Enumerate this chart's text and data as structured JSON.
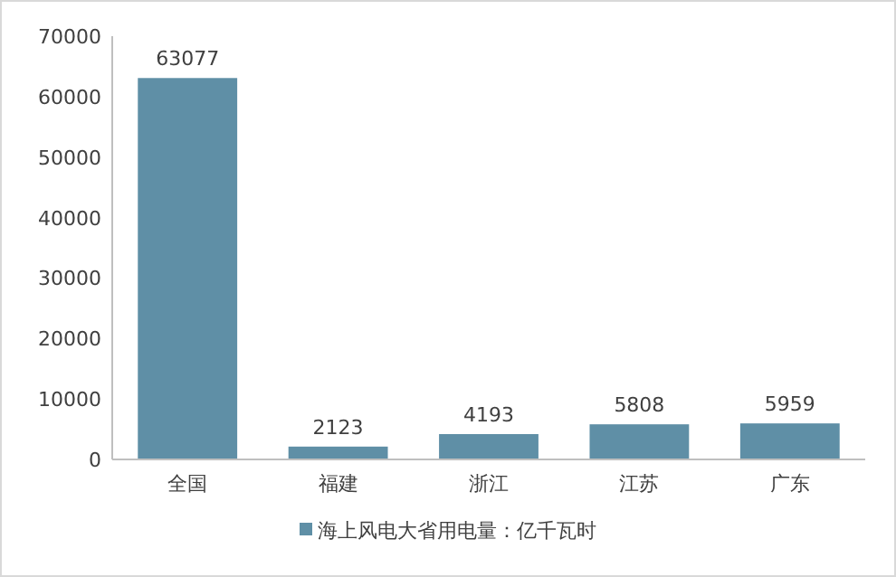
{
  "chart_data": {
    "type": "bar",
    "categories": [
      "全国",
      "福建",
      "浙江",
      "江苏",
      "广东"
    ],
    "series": [
      {
        "name": "海上风电大省用电量：亿千瓦时",
        "color": "#5f8fa6",
        "values": [
          63077,
          2123,
          4193,
          5808,
          5959
        ]
      }
    ],
    "ylim": [
      0,
      70000
    ],
    "yticks": [
      0,
      10000,
      20000,
      30000,
      40000,
      50000,
      60000,
      70000
    ],
    "data_labels": true,
    "legend": "bottom",
    "grid": false
  }
}
